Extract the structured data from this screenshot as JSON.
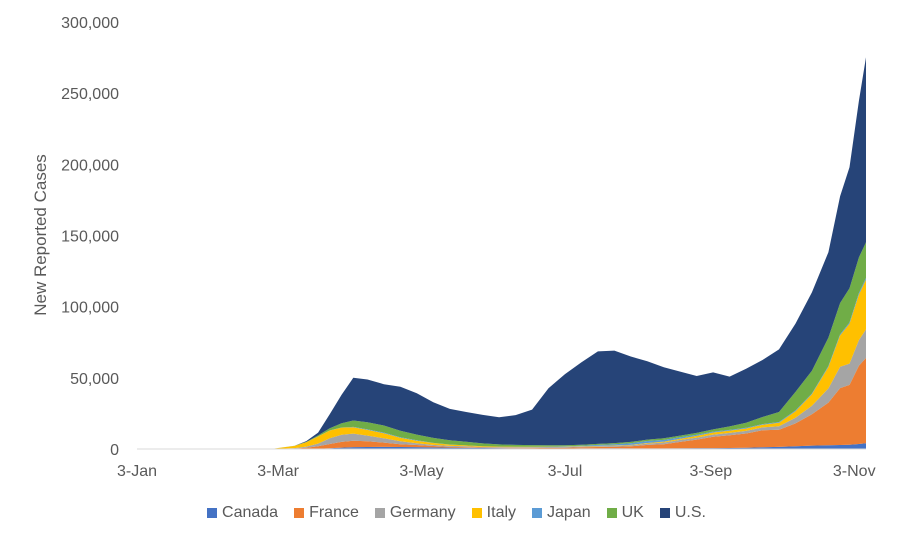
{
  "chart_data": {
    "type": "area",
    "stacked": true,
    "title": "",
    "xlabel": "",
    "ylabel": "New Reported Cases",
    "ylim": [
      0,
      300000
    ],
    "yticks": [
      "0",
      "50,000",
      "100,000",
      "150,000",
      "200,000",
      "250,000",
      "300,000"
    ],
    "yticks_values": [
      0,
      50000,
      100000,
      150000,
      200000,
      250000,
      300000
    ],
    "xticks": [
      "3-Jan",
      "3-Mar",
      "3-May",
      "3-Jul",
      "3-Sep",
      "3-Nov"
    ],
    "xticks_dates": [
      "2020-01-03",
      "2020-03-03",
      "2020-05-03",
      "2020-07-03",
      "2020-09-03",
      "2020-11-03"
    ],
    "xlim": [
      "2020-01-03",
      "2020-11-08"
    ],
    "grid": false,
    "legend_position": "bottom",
    "x": [
      "2020-01-03",
      "2020-02-01",
      "2020-03-01",
      "2020-03-10",
      "2020-03-15",
      "2020-03-20",
      "2020-03-25",
      "2020-03-30",
      "2020-04-04",
      "2020-04-10",
      "2020-04-17",
      "2020-04-24",
      "2020-05-01",
      "2020-05-08",
      "2020-05-15",
      "2020-05-22",
      "2020-05-29",
      "2020-06-05",
      "2020-06-12",
      "2020-06-19",
      "2020-06-26",
      "2020-07-03",
      "2020-07-10",
      "2020-07-17",
      "2020-07-24",
      "2020-07-31",
      "2020-08-07",
      "2020-08-14",
      "2020-08-21",
      "2020-08-28",
      "2020-09-04",
      "2020-09-11",
      "2020-09-18",
      "2020-09-25",
      "2020-10-02",
      "2020-10-09",
      "2020-10-16",
      "2020-10-23",
      "2020-10-28",
      "2020-11-01",
      "2020-11-05",
      "2020-11-08"
    ],
    "series": [
      {
        "name": "Canada",
        "color": "#4472c4",
        "values": [
          0,
          0,
          0,
          50,
          100,
          200,
          500,
          1000,
          1300,
          1400,
          1500,
          1400,
          1300,
          1100,
          1000,
          900,
          700,
          600,
          500,
          400,
          300,
          300,
          400,
          400,
          500,
          400,
          400,
          400,
          500,
          600,
          600,
          700,
          900,
          1200,
          1500,
          2000,
          2400,
          2600,
          2800,
          3000,
          3500,
          4000
        ]
      },
      {
        "name": "France",
        "color": "#ed7d31",
        "values": [
          0,
          0,
          0,
          300,
          800,
          1800,
          3000,
          4000,
          4500,
          4000,
          3000,
          2000,
          1500,
          1000,
          500,
          400,
          300,
          300,
          400,
          400,
          500,
          600,
          800,
          1000,
          1100,
          1500,
          2500,
          3000,
          4500,
          6000,
          8000,
          9000,
          10000,
          12000,
          12000,
          16000,
          22000,
          30000,
          40000,
          42000,
          55000,
          60000
        ]
      },
      {
        "name": "Germany",
        "color": "#a5a5a5",
        "values": [
          0,
          0,
          0,
          300,
          800,
          1800,
          4000,
          5000,
          5000,
          4000,
          3000,
          2000,
          1200,
          800,
          700,
          600,
          400,
          400,
          400,
          500,
          600,
          500,
          500,
          600,
          600,
          700,
          900,
          1200,
          1400,
          1400,
          1500,
          1600,
          1800,
          2000,
          2500,
          4000,
          6000,
          10000,
          15000,
          15000,
          18000,
          20000
        ]
      },
      {
        "name": "Italy",
        "color": "#ffc000",
        "values": [
          0,
          0,
          300,
          1500,
          3000,
          5000,
          5500,
          5000,
          4500,
          4000,
          3500,
          2500,
          1800,
          1300,
          900,
          600,
          500,
          400,
          300,
          250,
          200,
          200,
          200,
          200,
          250,
          300,
          400,
          600,
          800,
          1200,
          1500,
          1600,
          1700,
          1800,
          2500,
          4500,
          8000,
          15000,
          22000,
          28000,
          32000,
          35000
        ]
      },
      {
        "name": "Japan",
        "color": "#5b9bd5",
        "values": [
          0,
          0,
          0,
          0,
          20,
          30,
          50,
          100,
          200,
          400,
          500,
          400,
          300,
          100,
          50,
          30,
          30,
          40,
          50,
          60,
          100,
          200,
          400,
          700,
          900,
          1200,
          1400,
          1200,
          1000,
          800,
          600,
          500,
          500,
          500,
          500,
          600,
          600,
          700,
          800,
          900,
          1100,
          1200
        ]
      },
      {
        "name": "UK",
        "color": "#70ad47",
        "values": [
          0,
          0,
          0,
          100,
          300,
          700,
          1500,
          3000,
          4500,
          5000,
          5000,
          4500,
          4000,
          3500,
          3000,
          2500,
          2000,
          1500,
          1200,
          1100,
          1000,
          800,
          700,
          700,
          800,
          900,
          1000,
          1100,
          1200,
          1300,
          1600,
          2500,
          3500,
          5000,
          7000,
          13000,
          16000,
          20000,
          22000,
          24000,
          25000,
          25000
        ]
      },
      {
        "name": "U.S.",
        "color": "#264478",
        "values": [
          0,
          0,
          0,
          100,
          500,
          2000,
          10000,
          20000,
          30000,
          30000,
          29000,
          31000,
          29000,
          25000,
          22000,
          21000,
          20000,
          19000,
          21000,
          25000,
          40000,
          50000,
          58000,
          65000,
          65000,
          60000,
          55000,
          50000,
          45000,
          40000,
          40000,
          35000,
          38000,
          40000,
          44000,
          48000,
          55000,
          60000,
          75000,
          85000,
          110000,
          130000
        ]
      }
    ]
  }
}
